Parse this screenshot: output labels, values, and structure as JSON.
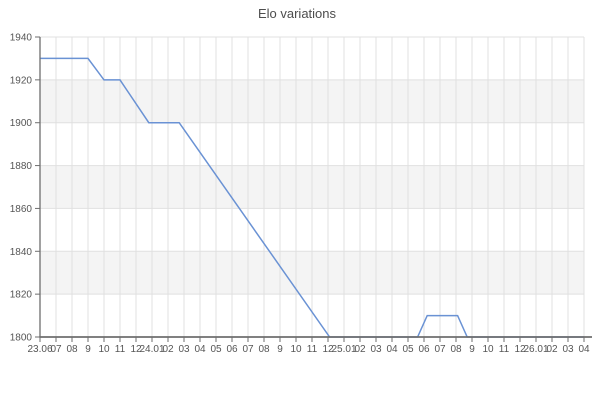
{
  "title": "Elo variations",
  "chart_data": {
    "type": "line",
    "title": "Elo variations",
    "xlabel": "",
    "ylabel": "",
    "ylim": [
      1800,
      1940
    ],
    "y_tick_step": 20,
    "y_tick_labels": [
      "1800",
      "1820",
      "1840",
      "1860",
      "1880",
      "1900",
      "1920",
      "1940"
    ],
    "x_tick_labels": [
      "23.06",
      "07",
      "08",
      "9",
      "10",
      "11",
      "12",
      "24.01",
      "02",
      "03",
      "04",
      "05",
      "06",
      "07",
      "08",
      "9",
      "10",
      "11",
      "12",
      "25.01",
      "02",
      "03",
      "04",
      "05",
      "06",
      "07",
      "08",
      "9",
      "10",
      "11",
      "12",
      "26.01",
      "02",
      "03",
      "04"
    ],
    "grid": "on",
    "legend": "none",
    "banding": "alternating horizontal bands between y gridlines, white top band",
    "series": [
      {
        "name": "Elo",
        "monthly_values": [
          1930,
          1930,
          1930,
          1930,
          1920,
          1920,
          1910,
          1900,
          1900,
          1900,
          1889,
          1878,
          1868,
          1857,
          1846,
          1835,
          1824,
          1814,
          1800,
          1800,
          1800,
          1800,
          1800,
          1800,
          1810,
          1810,
          1810,
          1800,
          1800,
          1800,
          1800,
          1800,
          1800,
          1800,
          1800
        ],
        "vertices_month_index_elo": [
          [
            0,
            1930
          ],
          [
            3,
            1930
          ],
          [
            4,
            1920
          ],
          [
            5,
            1920
          ],
          [
            6.8,
            1900
          ],
          [
            8.7,
            1900
          ],
          [
            18.1,
            1800
          ],
          [
            23.6,
            1800
          ],
          [
            24.2,
            1810
          ],
          [
            26.1,
            1810
          ],
          [
            26.7,
            1800
          ],
          [
            34,
            1800
          ]
        ]
      }
    ],
    "style": {
      "line_color": "#6a92d4",
      "band_color": "#f4f4f4",
      "grid_color": "#e0e0e0",
      "axis_color": "#6e6e6e",
      "tick_label_color": "#555555",
      "title_color": "#4d4d4d"
    }
  }
}
